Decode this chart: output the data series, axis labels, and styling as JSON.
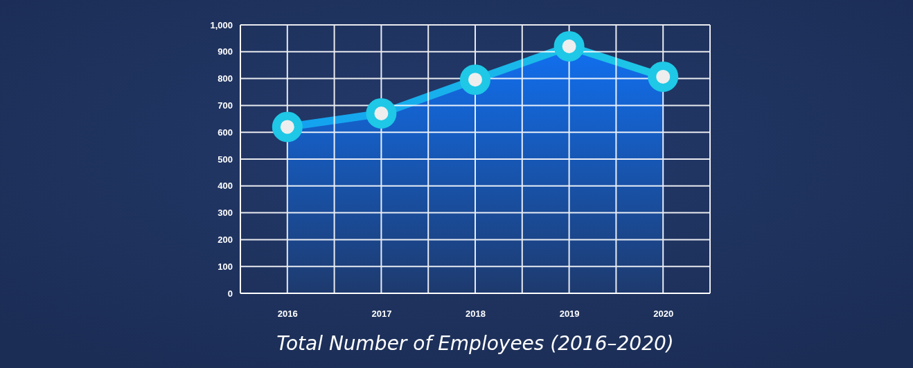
{
  "chart_data": {
    "type": "area",
    "title": "Total Number of Employees (2016–2020)",
    "categories": [
      "2016",
      "2017",
      "2018",
      "2019",
      "2020"
    ],
    "series": [
      {
        "color": "#1ec8e6",
        "values": [
          620,
          670,
          796,
          920,
          807
        ]
      }
    ],
    "ylim": [
      0,
      1000
    ],
    "yticks": [
      0,
      100,
      200,
      300,
      400,
      500,
      600,
      700,
      800,
      900,
      {
        "value": 1000,
        "label": "1,000"
      }
    ],
    "grid": true,
    "marker": "circle"
  }
}
